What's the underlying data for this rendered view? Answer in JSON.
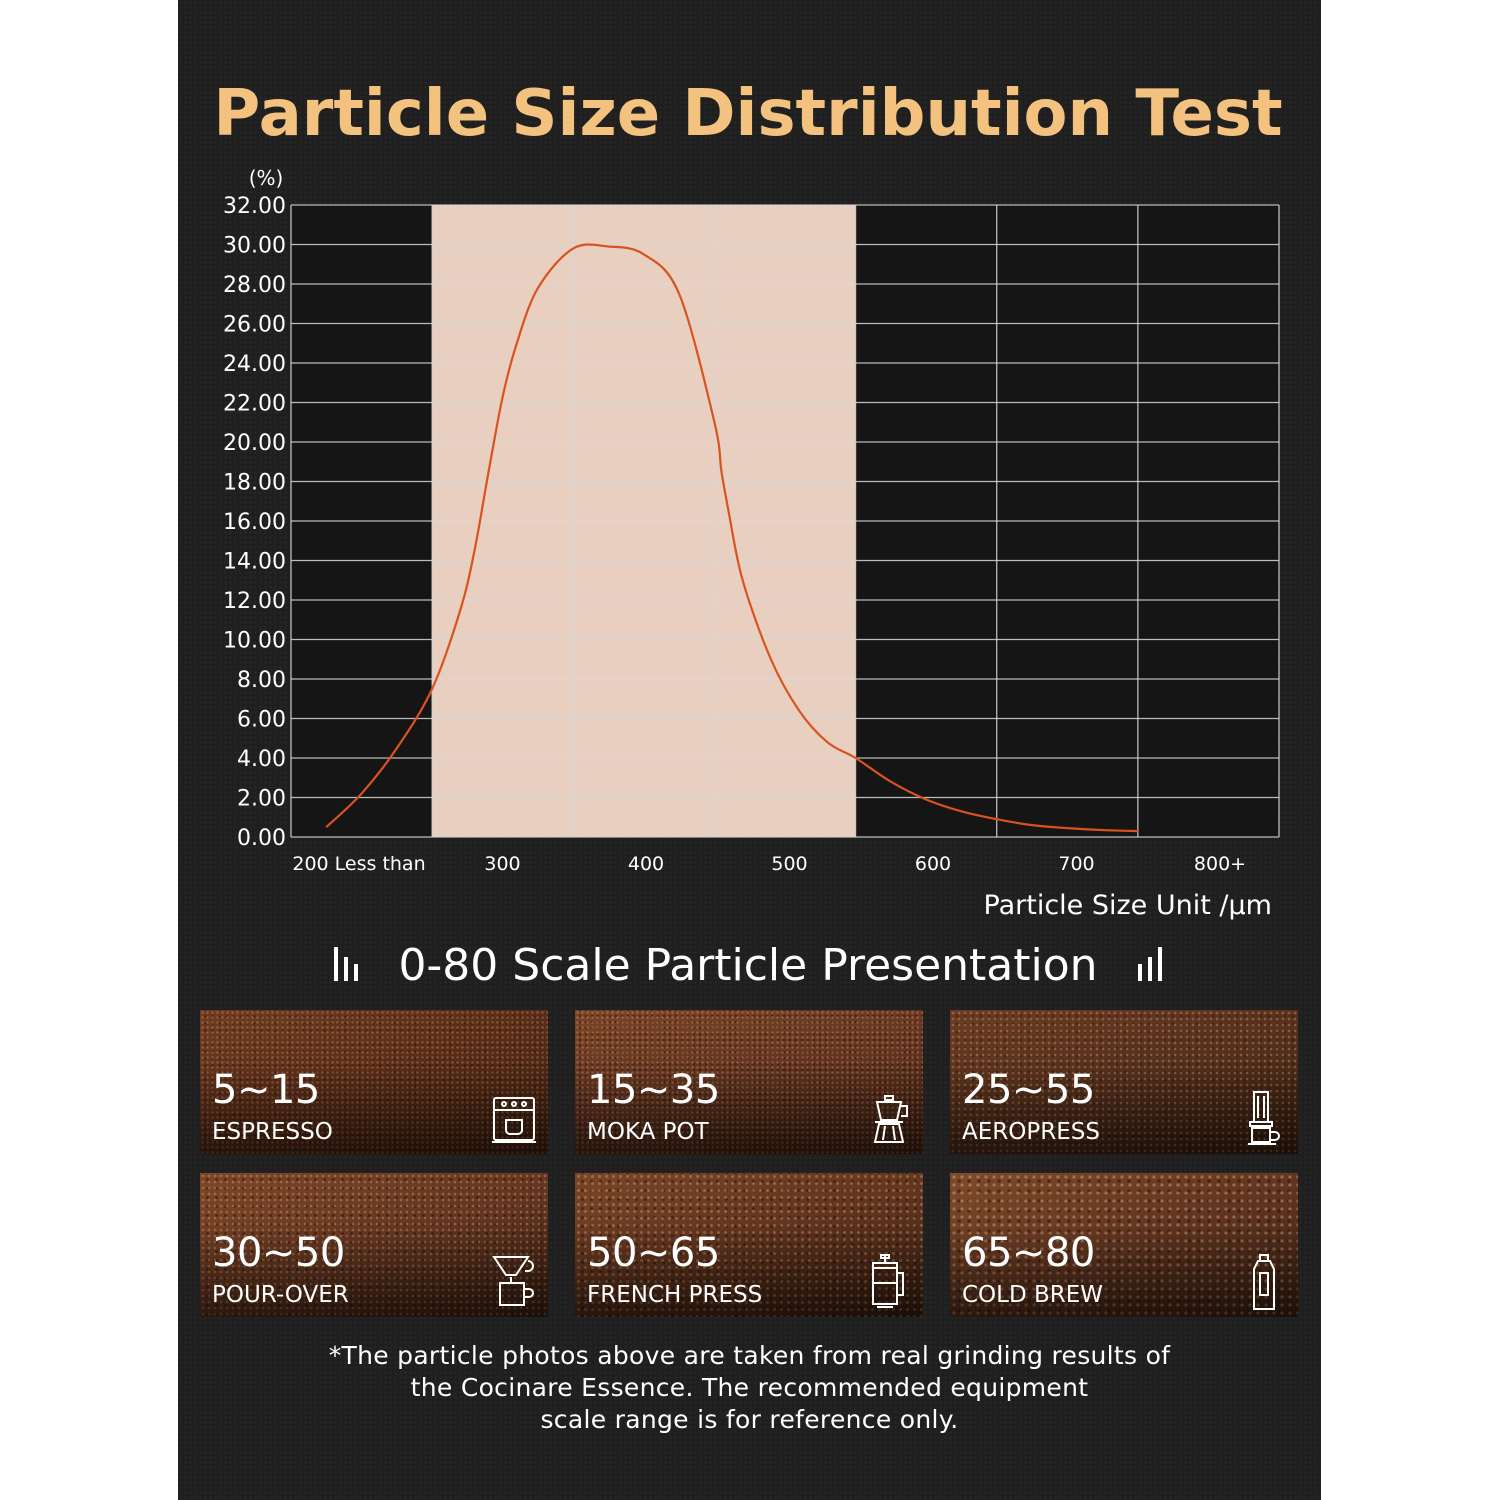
{
  "chart_data": {
    "type": "line",
    "title": "Particle Size Distribution Test",
    "y_unit": "(%)",
    "xlabel": "Particle Size Unit /μm",
    "ylim": [
      0,
      32
    ],
    "y_ticks": [
      "32.00",
      "30.00",
      "28.00",
      "26.00",
      "24.00",
      "22.00",
      "20.00",
      "18.00",
      "16.00",
      "14.00",
      "12.00",
      "10.00",
      "8.00",
      "6.00",
      "4.00",
      "2.00",
      "0.00"
    ],
    "x_tick_labels": [
      "200 Less than",
      "300",
      "400",
      "500",
      "600",
      "700",
      "800+"
    ],
    "xlim": [
      200,
      900
    ],
    "highlight_range": [
      300,
      600
    ],
    "grid": true,
    "colors": {
      "curve": "#d9531e",
      "highlight": "#e8cfc0",
      "title": "#f2c27e"
    },
    "series": [
      {
        "x": [
          225,
          250,
          275,
          300,
          320,
          330,
          340,
          350,
          360,
          375,
          400,
          425,
          450,
          475,
          500,
          505,
          510,
          520,
          540,
          560,
          580,
          600,
          625,
          650,
          675,
          700,
          725,
          750,
          775,
          800
        ],
        "y": [
          0.5,
          2.2,
          4.5,
          7.5,
          11.5,
          14.5,
          18.5,
          22.3,
          25.0,
          27.8,
          29.8,
          29.9,
          29.5,
          27.5,
          21.0,
          18.5,
          16.5,
          13.0,
          9.0,
          6.4,
          4.8,
          4.0,
          2.8,
          1.9,
          1.3,
          0.9,
          0.6,
          0.45,
          0.35,
          0.3
        ]
      }
    ]
  },
  "presentation": {
    "heading": "0-80 Scale Particle Presentation",
    "tiles": [
      {
        "range": "5~15",
        "method": "ESPRESSO",
        "icon": "espresso-machine-icon"
      },
      {
        "range": "15~35",
        "method": "MOKA POT",
        "icon": "moka-pot-icon"
      },
      {
        "range": "25~55",
        "method": "AEROPRESS",
        "icon": "aeropress-icon"
      },
      {
        "range": "30~50",
        "method": "POUR-OVER",
        "icon": "pour-over-icon"
      },
      {
        "range": "50~65",
        "method": "FRENCH PRESS",
        "icon": "french-press-icon"
      },
      {
        "range": "65~80",
        "method": "COLD BREW",
        "icon": "cold-brew-bottle-icon"
      }
    ]
  },
  "footnote": {
    "line1": "*The particle photos above are taken from real grinding results of",
    "line2": "the Cocinare Essence. The recommended equipment",
    "line3": "scale range is for reference only."
  }
}
